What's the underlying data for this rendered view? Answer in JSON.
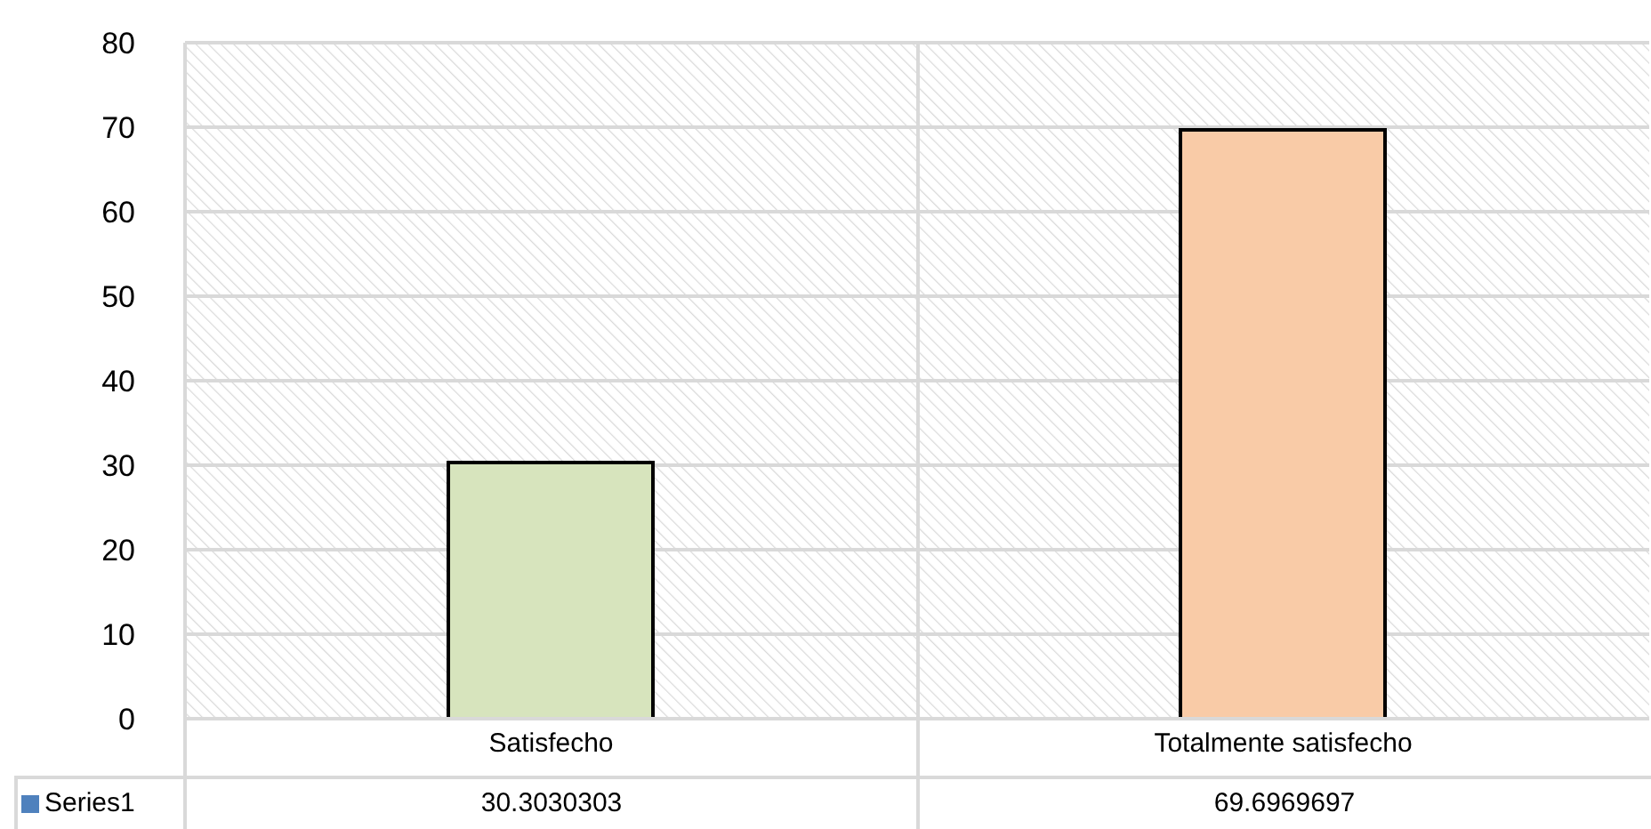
{
  "chart_data": {
    "type": "bar",
    "categories": [
      "Satisfecho",
      "Totalmente satisfecho"
    ],
    "series": [
      {
        "name": "Series1",
        "color": "#4f81bd",
        "colors": [
          "#d7e4bd",
          "#f9cba7"
        ],
        "values": [
          30.3030303,
          69.6969697
        ]
      }
    ],
    "ylim": [
      0,
      80
    ],
    "yticks": [
      0,
      10,
      20,
      30,
      40,
      50,
      60,
      70,
      80
    ],
    "grid": "y",
    "data_labels": true,
    "legend": "bottom"
  }
}
